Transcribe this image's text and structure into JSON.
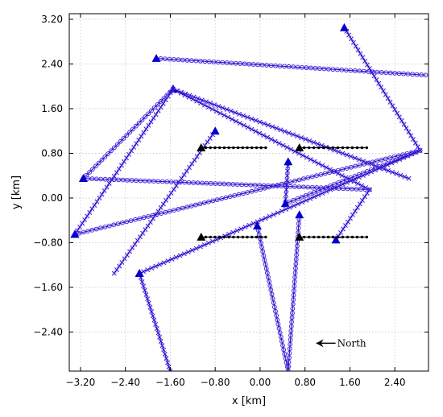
{
  "chart_data": {
    "type": "line",
    "title": "",
    "xlabel": "x [km]",
    "ylabel": "y [km]",
    "xlim": [
      -3.4,
      3.0
    ],
    "ylim": [
      -3.1,
      3.3
    ],
    "xticks": [
      -3.2,
      -2.4,
      -1.6,
      -0.8,
      0.0,
      0.8,
      1.6,
      2.4
    ],
    "yticks": [
      -2.4,
      -1.6,
      -0.8,
      0.0,
      0.8,
      1.6,
      2.4,
      3.2
    ],
    "x_tick_labels": [
      "−3.20",
      "−2.40",
      "−1.60",
      "−0.80",
      "0.00",
      "0.80",
      "1.60",
      "2.40"
    ],
    "y_tick_labels": [
      "−2.40",
      "−1.60",
      "−0.80",
      "0.00",
      "0.80",
      "1.60",
      "2.40",
      "3.20"
    ],
    "grid": true,
    "colors": {
      "track": "#1515cc",
      "start_marker": "#0000cc",
      "array_marker": "#000000",
      "highlight": "#ff80ff"
    },
    "tracks": [
      {
        "marker": "circle",
        "start": [
          -1.85,
          2.5
        ],
        "end": [
          2.95,
          2.2
        ]
      },
      {
        "marker": "cross",
        "start": [
          1.5,
          3.05
        ],
        "end": [
          2.85,
          0.85
        ]
      },
      {
        "marker": "cross",
        "start": [
          -1.55,
          1.95
        ],
        "end": [
          2.65,
          0.35
        ]
      },
      {
        "marker": "circle",
        "start": [
          -1.55,
          1.95
        ],
        "end": [
          -3.15,
          0.35
        ]
      },
      {
        "marker": "cross",
        "start": [
          -1.55,
          1.95
        ],
        "end": [
          1.95,
          0.15
        ]
      },
      {
        "marker": "cross",
        "start": [
          -0.8,
          1.2
        ],
        "end": [
          -2.6,
          -1.35
        ]
      },
      {
        "marker": "circle",
        "start": [
          -3.15,
          0.35
        ],
        "end": [
          1.95,
          0.15
        ]
      },
      {
        "marker": "circle",
        "start": [
          -3.3,
          -0.65
        ],
        "end": [
          2.85,
          0.85
        ]
      },
      {
        "marker": "cross",
        "start": [
          -3.3,
          -0.65
        ],
        "end": [
          -1.55,
          1.95
        ]
      },
      {
        "marker": "cross",
        "start": [
          0.5,
          0.65
        ],
        "end": [
          0.45,
          -0.1
        ]
      },
      {
        "marker": "circle",
        "start": [
          0.45,
          -0.1
        ],
        "end": [
          2.85,
          0.85
        ]
      },
      {
        "marker": "cross",
        "start": [
          -2.15,
          -1.35
        ],
        "end": [
          2.85,
          0.85
        ]
      },
      {
        "marker": "cross",
        "start": [
          1.35,
          -0.75
        ],
        "end": [
          1.95,
          0.15
        ]
      },
      {
        "marker": "circle",
        "start": [
          -0.05,
          -0.5
        ],
        "end": [
          0.5,
          -3.1
        ]
      },
      {
        "marker": "circle",
        "start": [
          0.7,
          -0.3
        ],
        "end": [
          0.5,
          -3.1
        ]
      },
      {
        "marker": "cross",
        "start": [
          -2.15,
          -1.35
        ],
        "end": [
          -1.6,
          -3.1
        ]
      }
    ],
    "arrays": [
      {
        "start": [
          -1.05,
          0.9
        ],
        "end": [
          0.1,
          0.9
        ]
      },
      {
        "start": [
          0.7,
          0.9
        ],
        "end": [
          1.9,
          0.9
        ]
      },
      {
        "start": [
          -1.05,
          -0.7
        ],
        "end": [
          0.1,
          -0.7
        ]
      },
      {
        "start": [
          0.7,
          -0.7
        ],
        "end": [
          1.9,
          -0.7
        ]
      }
    ],
    "annotations": [
      {
        "text": "North",
        "x": 1.0,
        "y": -2.6,
        "arrow": "left"
      }
    ]
  }
}
